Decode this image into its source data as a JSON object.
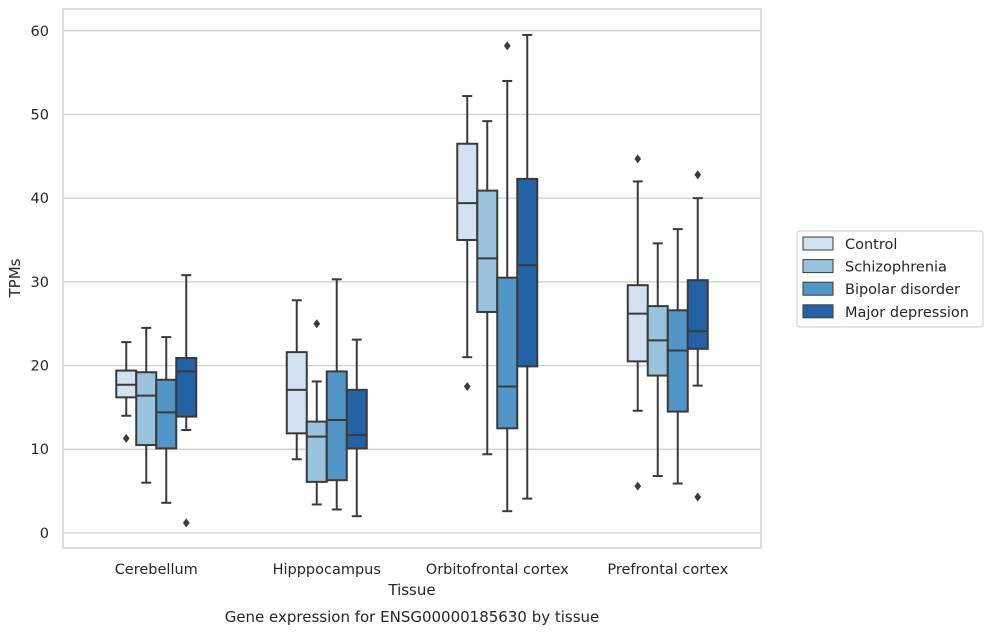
{
  "chart_data": {
    "type": "box",
    "xlabel": "Tissue",
    "ylabel": "TPMs",
    "caption": "Gene expression for ENSG00000185630 by tissue",
    "categories": [
      "Cerebellum",
      "Hipppocampus",
      "Orbitofrontal cortex",
      "Prefrontal cortex"
    ],
    "ylim": [
      -1.8,
      62.6
    ],
    "yticks": [
      "0",
      "10",
      "20",
      "30",
      "40",
      "50",
      "60"
    ],
    "grid": "horizontal",
    "legend_position": "right",
    "series": [
      {
        "name": "Control",
        "color": "#d2e2f0",
        "boxes": [
          {
            "low": 14,
            "q1": 16.2,
            "median": 17.7,
            "q3": 19.4,
            "high": 22.8,
            "outliers": [
              11.3
            ]
          },
          {
            "low": 8.8,
            "q1": 11.9,
            "median": 17.1,
            "q3": 21.6,
            "high": 27.8,
            "outliers": []
          },
          {
            "low": 21,
            "q1": 35,
            "median": 39.4,
            "q3": 46.5,
            "high": 52.2,
            "outliers": [
              17.5
            ]
          },
          {
            "low": 14.6,
            "q1": 20.5,
            "median": 26.2,
            "q3": 29.6,
            "high": 42,
            "outliers": [
              44.7,
              5.6
            ]
          }
        ]
      },
      {
        "name": "Schizophrenia",
        "color": "#9ac3dd",
        "boxes": [
          {
            "low": 6,
            "q1": 10.5,
            "median": 16.4,
            "q3": 19.2,
            "high": 24.5,
            "outliers": []
          },
          {
            "low": 3.4,
            "q1": 6.1,
            "median": 11.5,
            "q3": 13.3,
            "high": 18.1,
            "outliers": [
              25
            ]
          },
          {
            "low": 9.4,
            "q1": 26.4,
            "median": 32.8,
            "q3": 40.9,
            "high": 49.2,
            "outliers": []
          },
          {
            "low": 6.8,
            "q1": 18.8,
            "median": 23,
            "q3": 27.1,
            "high": 34.6,
            "outliers": []
          }
        ]
      },
      {
        "name": "Bipolar disorder",
        "color": "#5196c7",
        "boxes": [
          {
            "low": 3.6,
            "q1": 10.1,
            "median": 14.4,
            "q3": 18.3,
            "high": 23.4,
            "outliers": []
          },
          {
            "low": 2.8,
            "q1": 6.3,
            "median": 13.5,
            "q3": 19.3,
            "high": 30.3,
            "outliers": []
          },
          {
            "low": 2.6,
            "q1": 12.5,
            "median": 17.5,
            "q3": 30.5,
            "high": 54,
            "outliers": [
              58.2
            ]
          },
          {
            "low": 5.9,
            "q1": 14.5,
            "median": 21.8,
            "q3": 26.6,
            "high": 36.3,
            "outliers": []
          }
        ]
      },
      {
        "name": "Major depression",
        "color": "#2462a6",
        "boxes": [
          {
            "low": 12.3,
            "q1": 13.9,
            "median": 19.3,
            "q3": 20.9,
            "high": 30.8,
            "outliers": [
              1.2
            ]
          },
          {
            "low": 2,
            "q1": 10.1,
            "median": 11.7,
            "q3": 17.1,
            "high": 23.1,
            "outliers": []
          },
          {
            "low": 4.1,
            "q1": 19.9,
            "median": 32,
            "q3": 42.3,
            "high": 59.5,
            "outliers": []
          },
          {
            "low": 17.6,
            "q1": 22,
            "median": 24.1,
            "q3": 30.2,
            "high": 40,
            "outliers": [
              42.8,
              4.3
            ]
          }
        ]
      }
    ]
  }
}
